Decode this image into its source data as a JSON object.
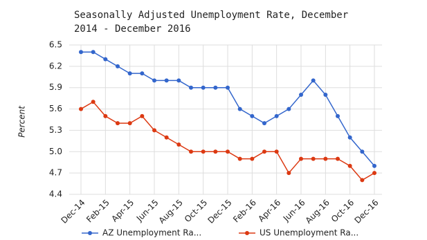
{
  "chart_data": {
    "type": "line",
    "title": "Seasonally Adjusted Unemployment Rate, December 2014 - December 2016",
    "y_label": "Percent",
    "categories": [
      "Dec-14",
      null,
      "Feb-15",
      null,
      "Apr-15",
      null,
      "Jun-15",
      null,
      "Aug-15",
      null,
      "Oct-15",
      null,
      "Dec-15",
      null,
      "Feb-16",
      null,
      "Apr-16",
      null,
      "Jun-16",
      null,
      "Aug-16",
      null,
      "Oct-16",
      null,
      "Dec-16"
    ],
    "series": [
      {
        "name": "AZ Unemployment Ra...",
        "color": "#3366cc",
        "values": [
          6.4,
          6.4,
          6.3,
          6.2,
          6.1,
          6.1,
          6.0,
          6.0,
          6.0,
          5.9,
          5.9,
          5.9,
          5.9,
          5.6,
          5.5,
          5.4,
          5.5,
          5.6,
          5.8,
          6.0,
          5.8,
          5.5,
          5.2,
          5.0,
          4.8
        ]
      },
      {
        "name": "US Unemployment Ra...",
        "color": "#dc3912",
        "values": [
          5.6,
          5.7,
          5.5,
          5.4,
          5.4,
          5.5,
          5.3,
          5.2,
          5.1,
          5.0,
          5.0,
          5.0,
          5.0,
          4.9,
          4.9,
          5.0,
          5.0,
          4.7,
          4.9,
          4.9,
          4.9,
          4.9,
          4.8,
          4.6,
          4.7
        ]
      }
    ],
    "ylim": [
      4.4,
      6.5
    ],
    "yticks": [
      4.4,
      4.7,
      {
        "value": 5,
        "label": "5.0"
      },
      5.3,
      5.6,
      5.9,
      6.2,
      6.5
    ],
    "grid": true
  }
}
